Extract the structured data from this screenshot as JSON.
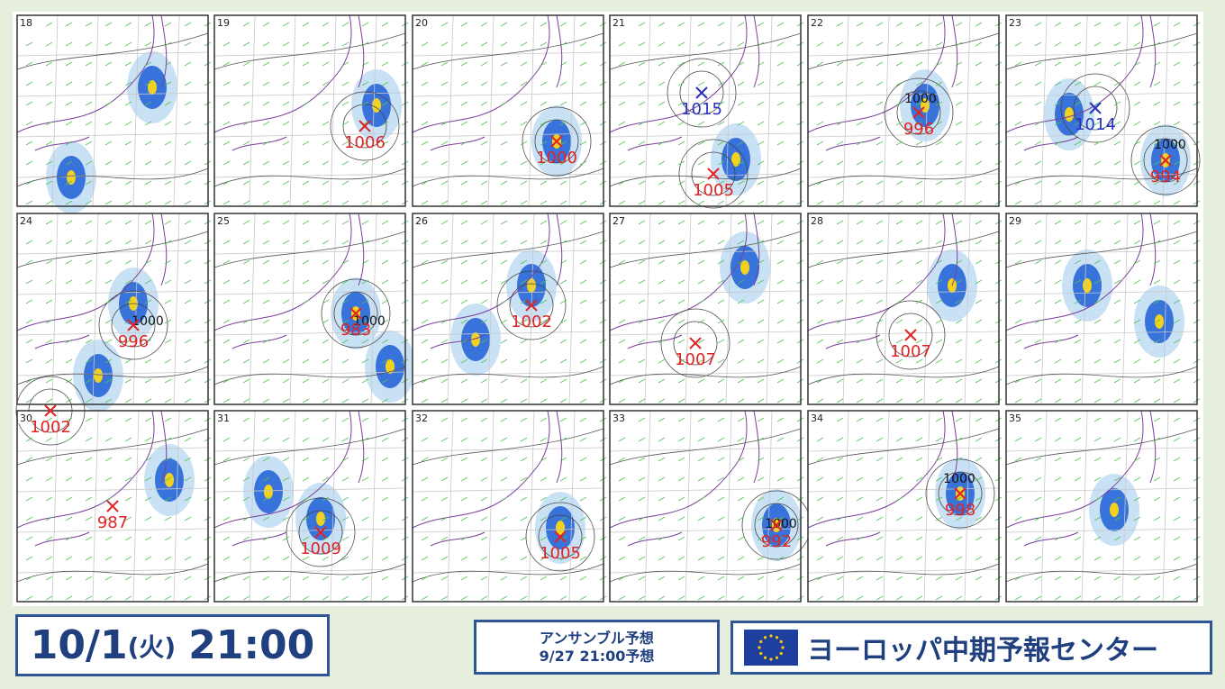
{
  "panels": [
    {
      "member": "18",
      "lows": [],
      "isobars": []
    },
    {
      "member": "19",
      "lows": [
        {
          "label": "1006",
          "color": "#e02424"
        }
      ],
      "isobars": []
    },
    {
      "member": "20",
      "lows": [
        {
          "label": "1000",
          "color": "#e02424"
        }
      ],
      "isobars": []
    },
    {
      "member": "21",
      "lows": [
        {
          "label": "1015",
          "color": "#2832c2"
        },
        {
          "label": "1005",
          "color": "#e02424"
        }
      ],
      "isobars": []
    },
    {
      "member": "22",
      "lows": [
        {
          "label": "996",
          "color": "#e02424"
        }
      ],
      "isobars": [
        "1000"
      ]
    },
    {
      "member": "23",
      "lows": [
        {
          "label": "1014",
          "color": "#2832c2"
        },
        {
          "label": "994",
          "color": "#e02424"
        }
      ],
      "isobars": [
        "1000"
      ]
    },
    {
      "member": "24",
      "lows": [
        {
          "label": "996",
          "color": "#e02424"
        }
      ],
      "isobars": [
        "1000"
      ]
    },
    {
      "member": "25",
      "lows": [
        {
          "label": "983",
          "color": "#e02424"
        }
      ],
      "isobars": [
        "1000"
      ]
    },
    {
      "member": "26",
      "lows": [
        {
          "label": "1002",
          "color": "#e02424"
        }
      ],
      "isobars": []
    },
    {
      "member": "27",
      "lows": [
        {
          "label": "1007",
          "color": "#e02424"
        }
      ],
      "isobars": []
    },
    {
      "member": "28",
      "lows": [
        {
          "label": "1007",
          "color": "#e02424"
        }
      ],
      "isobars": []
    },
    {
      "member": "29",
      "lows": [],
      "isobars": []
    },
    {
      "member": "30",
      "lows": [
        {
          "label": "1002",
          "color": "#e02424"
        },
        {
          "label": "987",
          "color": "#e02424"
        }
      ],
      "isobars": []
    },
    {
      "member": "31",
      "lows": [
        {
          "label": "1009",
          "color": "#e02424"
        }
      ],
      "isobars": []
    },
    {
      "member": "32",
      "lows": [
        {
          "label": "1005",
          "color": "#e02424"
        }
      ],
      "isobars": []
    },
    {
      "member": "33",
      "lows": [
        {
          "label": "992",
          "color": "#e02424"
        }
      ],
      "isobars": [
        "1000"
      ]
    },
    {
      "member": "34",
      "lows": [
        {
          "label": "998",
          "color": "#e02424"
        }
      ],
      "isobars": [
        "1000"
      ]
    },
    {
      "member": "35",
      "lows": [],
      "isobars": []
    }
  ],
  "footer": {
    "date": "10/1",
    "weekday": "(火)",
    "time": "21:00",
    "forecast_title": "アンサンブル予想",
    "forecast_issued": "9/27 21:00予想",
    "center": "ヨーロッパ中期予報センター"
  }
}
